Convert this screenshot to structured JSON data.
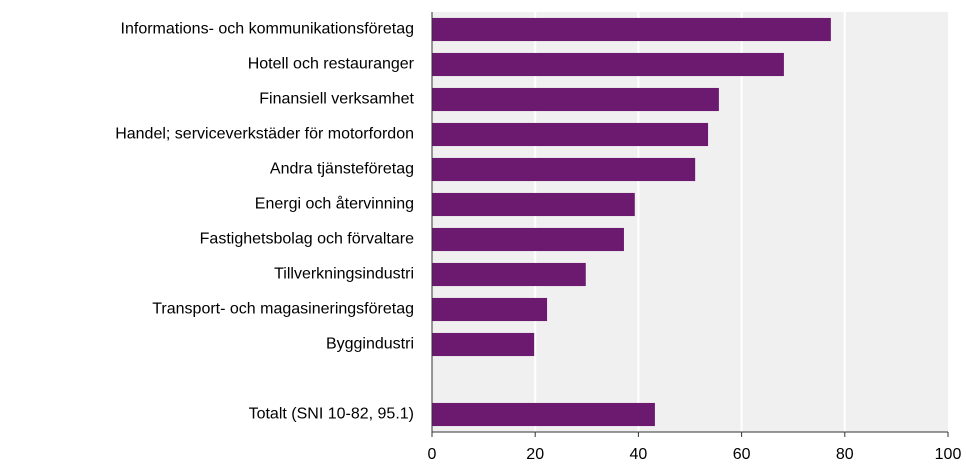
{
  "chart_data": {
    "type": "bar",
    "orientation": "horizontal",
    "categories": [
      "Informations- och kommunikationsföretag",
      "Hotell och restauranger",
      "Finansiell verksamhet",
      "Handel; serviceverkstäder för motorfordon",
      "Andra tjänsteföretag",
      "Energi och återvinning",
      "Fastighetsbolag och förvaltare",
      "Tillverkningsindustri",
      "Transport- och magasineringsföretag",
      "Byggindustri",
      null,
      "Totalt (SNI 10-82, 95.1)"
    ],
    "values": [
      77.3,
      68.2,
      55.6,
      53.5,
      51,
      39.3,
      37.2,
      29.8,
      22.3,
      19.8,
      null,
      43.2
    ],
    "color": "#6b1a6f",
    "xlim": [
      0,
      100
    ],
    "xticks": [
      0,
      20,
      40,
      60,
      80,
      100
    ],
    "grid": true
  }
}
